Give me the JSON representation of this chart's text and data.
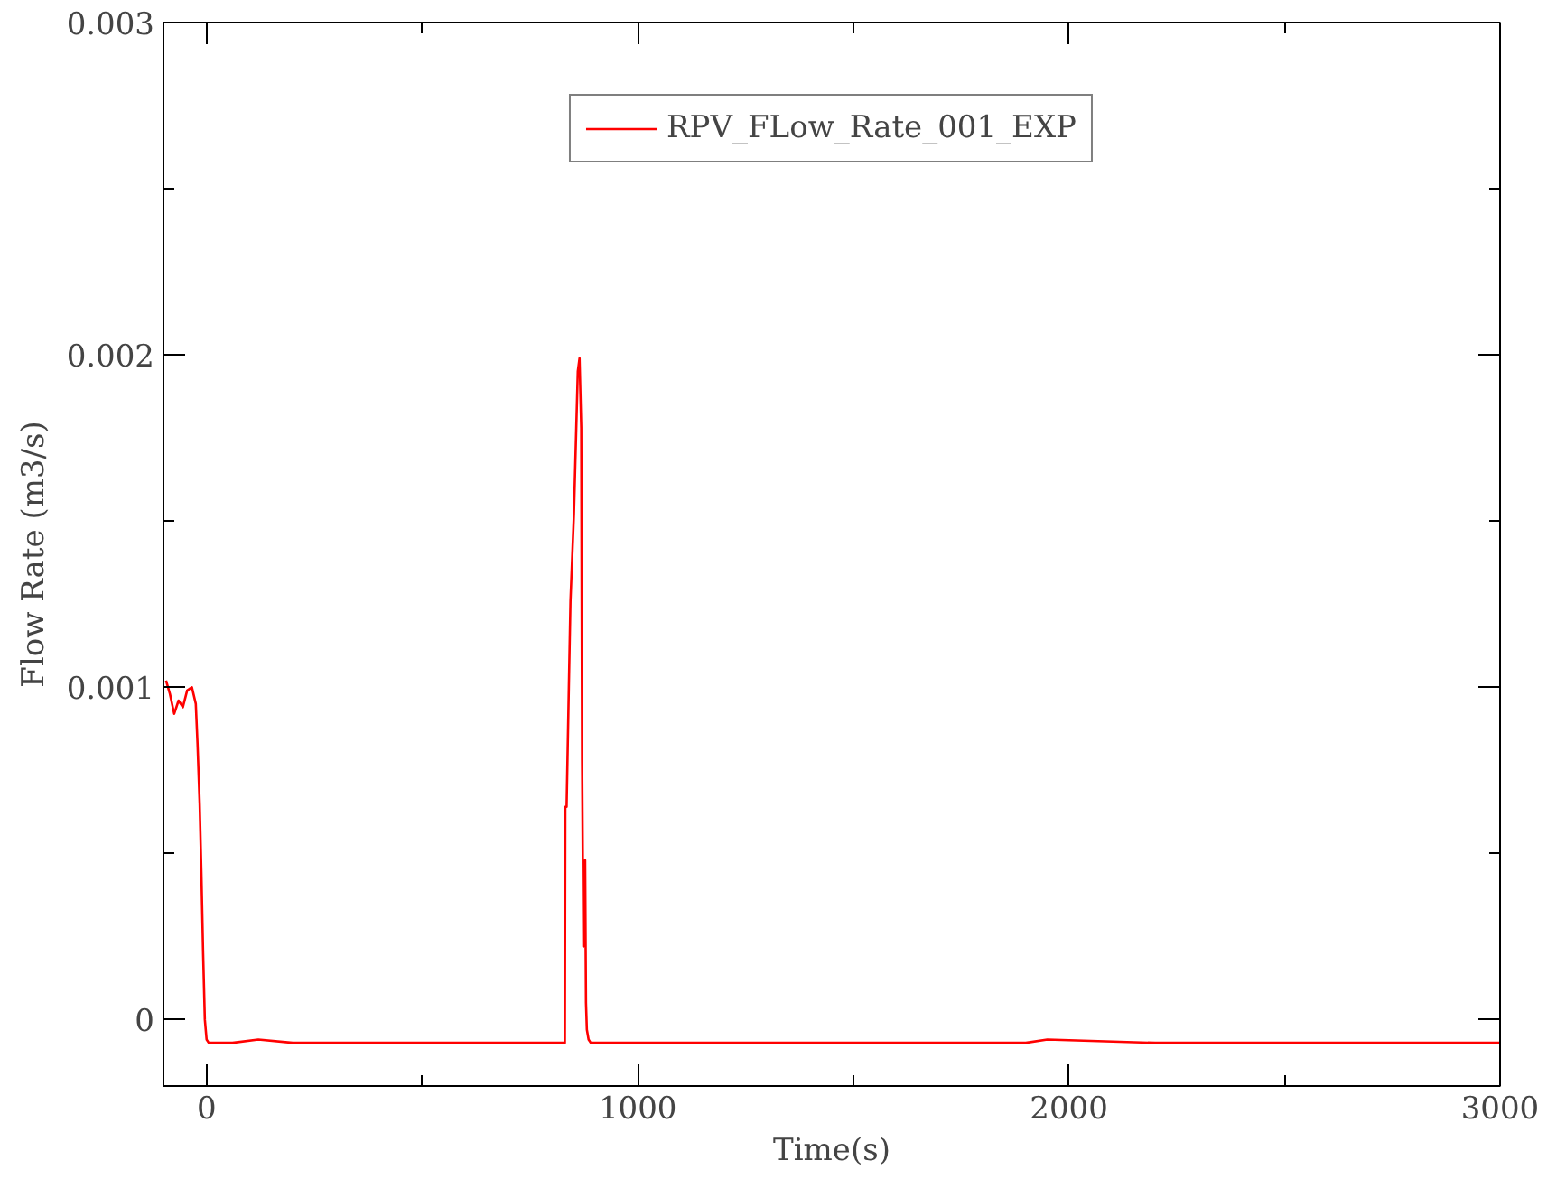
{
  "chart_data": {
    "type": "line",
    "xlabel": "Time(s)",
    "ylabel": "Flow Rate (m3/s)",
    "xlim": [
      -100,
      3000
    ],
    "ylim": [
      -0.0002,
      0.003
    ],
    "xticks": [
      0,
      1000,
      2000,
      3000
    ],
    "yticks": [
      0,
      0.001,
      0.002,
      0.003
    ],
    "grid": false,
    "legend": "top",
    "line_style": "solid",
    "marker": "none",
    "x": [
      -94,
      -85,
      -75,
      -65,
      -55,
      -45,
      -34,
      -25,
      -21,
      -16,
      -12,
      -8,
      -4,
      0,
      5,
      15,
      60,
      120,
      200,
      280,
      400,
      600,
      831,
      832,
      835,
      844,
      852,
      861,
      865,
      869,
      871,
      874,
      878,
      880,
      882,
      886,
      891,
      950,
      1200,
      1500,
      1900,
      1950,
      2200,
      2500,
      2700,
      3000
    ],
    "series": [
      {
        "name": "RPV_FLow_Rate_001_EXP",
        "color": "#ff0000",
        "values": [
          0.00102,
          0.00098,
          0.00092,
          0.00096,
          0.00094,
          0.00099,
          0.001,
          0.00095,
          0.00083,
          0.00065,
          0.00044,
          0.0002,
          0.0,
          -6e-05,
          -7e-05,
          -7e-05,
          -7e-05,
          -6e-05,
          -7e-05,
          -7e-05,
          -7e-05,
          -7e-05,
          -7e-05,
          0.00064,
          0.00064,
          0.00126,
          0.00152,
          0.00195,
          0.00199,
          0.00178,
          0.00078,
          0.00022,
          0.00048,
          5e-05,
          -3e-05,
          -6e-05,
          -7e-05,
          -7e-05,
          -7e-05,
          -7e-05,
          -7e-05,
          -6e-05,
          -7e-05,
          -7e-05,
          -7e-05,
          -7e-05
        ]
      }
    ]
  }
}
